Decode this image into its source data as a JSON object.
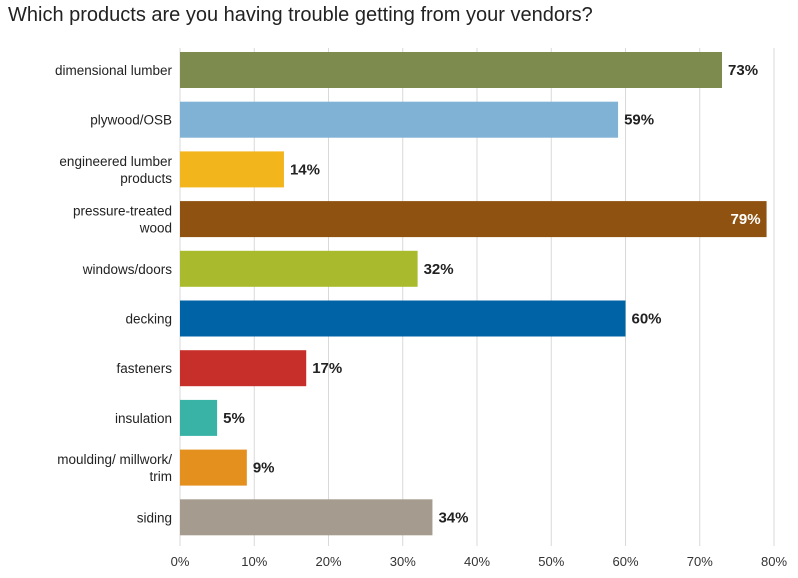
{
  "chart_data": {
    "type": "bar",
    "orientation": "horizontal",
    "title": "Which products are you having trouble getting from your vendors?",
    "categories": [
      "dimensional lumber",
      "plywood/OSB",
      "engineered lumber products",
      "pressure-treated wood",
      "windows/doors",
      "decking",
      "fasteners",
      "insulation",
      "moulding/ millwork/ trim",
      "siding"
    ],
    "values": [
      73,
      59,
      14,
      79,
      32,
      60,
      17,
      5,
      9,
      34
    ],
    "value_labels": [
      "73%",
      "59%",
      "14%",
      "79%",
      "32%",
      "60%",
      "17%",
      "5%",
      "9%",
      "34%"
    ],
    "colors": [
      "#7d8b4e",
      "#7fb2d4",
      "#f2b51c",
      "#8f5210",
      "#a9bb2d",
      "#0063a5",
      "#c7302a",
      "#3ab3a7",
      "#e3901f",
      "#a59c8f"
    ],
    "xlim": [
      0,
      80
    ],
    "xticks": [
      0,
      10,
      20,
      30,
      40,
      50,
      60,
      70,
      80
    ],
    "xtick_labels": [
      "0%",
      "10%",
      "20%",
      "30%",
      "40%",
      "50%",
      "60%",
      "70%",
      "80%"
    ],
    "grid": true,
    "legend": "none"
  }
}
